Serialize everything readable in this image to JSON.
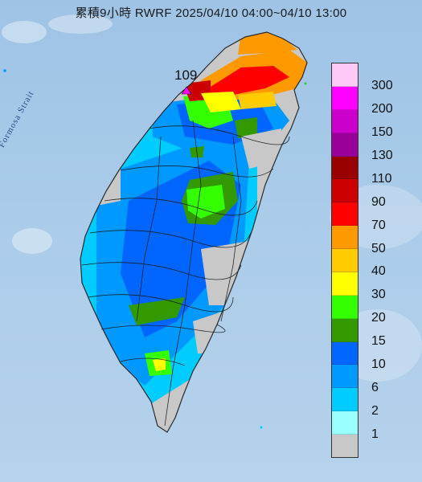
{
  "title": "累積9小時 RWRF 2025/04/10 04:00~04/10 13:00",
  "peak_value": "109",
  "water_label": "Formosa Strait",
  "colors": {
    "sea": "#a9cbe9",
    "land_base": "#c8c8c8"
  },
  "legend": [
    {
      "label": "300",
      "color": "#ffc9f7"
    },
    {
      "label": "200",
      "color": "#ff00ff"
    },
    {
      "label": "150",
      "color": "#cc00cc"
    },
    {
      "label": "130",
      "color": "#990099"
    },
    {
      "label": "110",
      "color": "#990000"
    },
    {
      "label": "90",
      "color": "#cc0000"
    },
    {
      "label": "70",
      "color": "#ff0000"
    },
    {
      "label": "50",
      "color": "#ff9900"
    },
    {
      "label": "40",
      "color": "#ffcc00"
    },
    {
      "label": "30",
      "color": "#ffff00"
    },
    {
      "label": "20",
      "color": "#33ff00"
    },
    {
      "label": "15",
      "color": "#339900"
    },
    {
      "label": "10",
      "color": "#0066ff"
    },
    {
      "label": "6",
      "color": "#0099ff"
    },
    {
      "label": "2",
      "color": "#00ccff"
    },
    {
      "label": "1",
      "color": "#99ffff"
    },
    {
      "label": "",
      "color": "#c8c8c8"
    }
  ]
}
